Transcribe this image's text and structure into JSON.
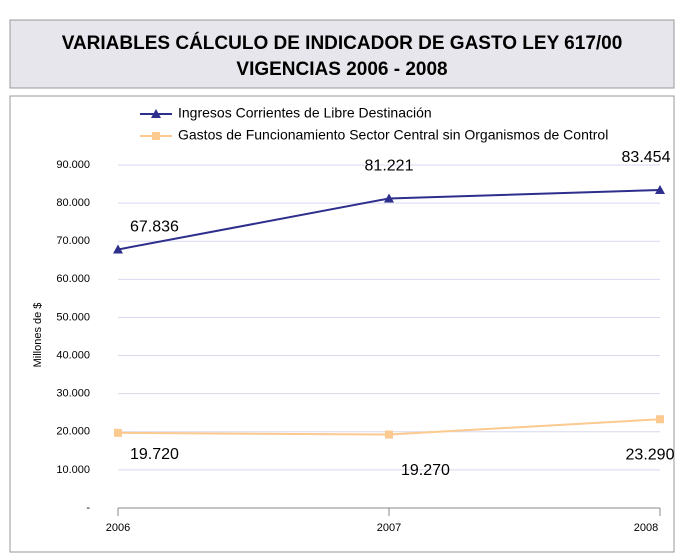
{
  "chart_data": {
    "type": "line",
    "title": "VARIABLES CÁLCULO DE INDICADOR DE GASTO LEY 617/00",
    "subtitle": "VIGENCIAS 2006 - 2008",
    "y_label": "Millones de $",
    "categories": [
      "2006",
      "2007",
      "2008"
    ],
    "series": [
      {
        "name": "Ingresos Corrientes de Libre Destinación",
        "color": "#2e2e8c",
        "marker": "triangle",
        "values": [
          67836,
          81221,
          83454
        ],
        "value_labels": [
          "67.836",
          "81.221",
          "83.454"
        ]
      },
      {
        "name": "Gastos de Funcionamiento Sector Central sin Organismos de Control",
        "color": "#fcc98e",
        "marker": "square",
        "values": [
          19720,
          19270,
          23290
        ],
        "value_labels": [
          "19.720",
          "19.270",
          "23.290"
        ]
      }
    ],
    "ylim": [
      0,
      90000
    ],
    "yticks": [
      {
        "value": 0,
        "label": "-"
      },
      {
        "value": 10000,
        "label": "10.000"
      },
      {
        "value": 20000,
        "label": "20.000"
      },
      {
        "value": 30000,
        "label": "30.000"
      },
      {
        "value": 40000,
        "label": "40.000"
      },
      {
        "value": 50000,
        "label": "50.000"
      },
      {
        "value": 60000,
        "label": "60.000"
      },
      {
        "value": 70000,
        "label": "70.000"
      },
      {
        "value": 80000,
        "label": "80.000"
      },
      {
        "value": 90000,
        "label": "90.000"
      }
    ],
    "grid": true,
    "legend": "top"
  }
}
